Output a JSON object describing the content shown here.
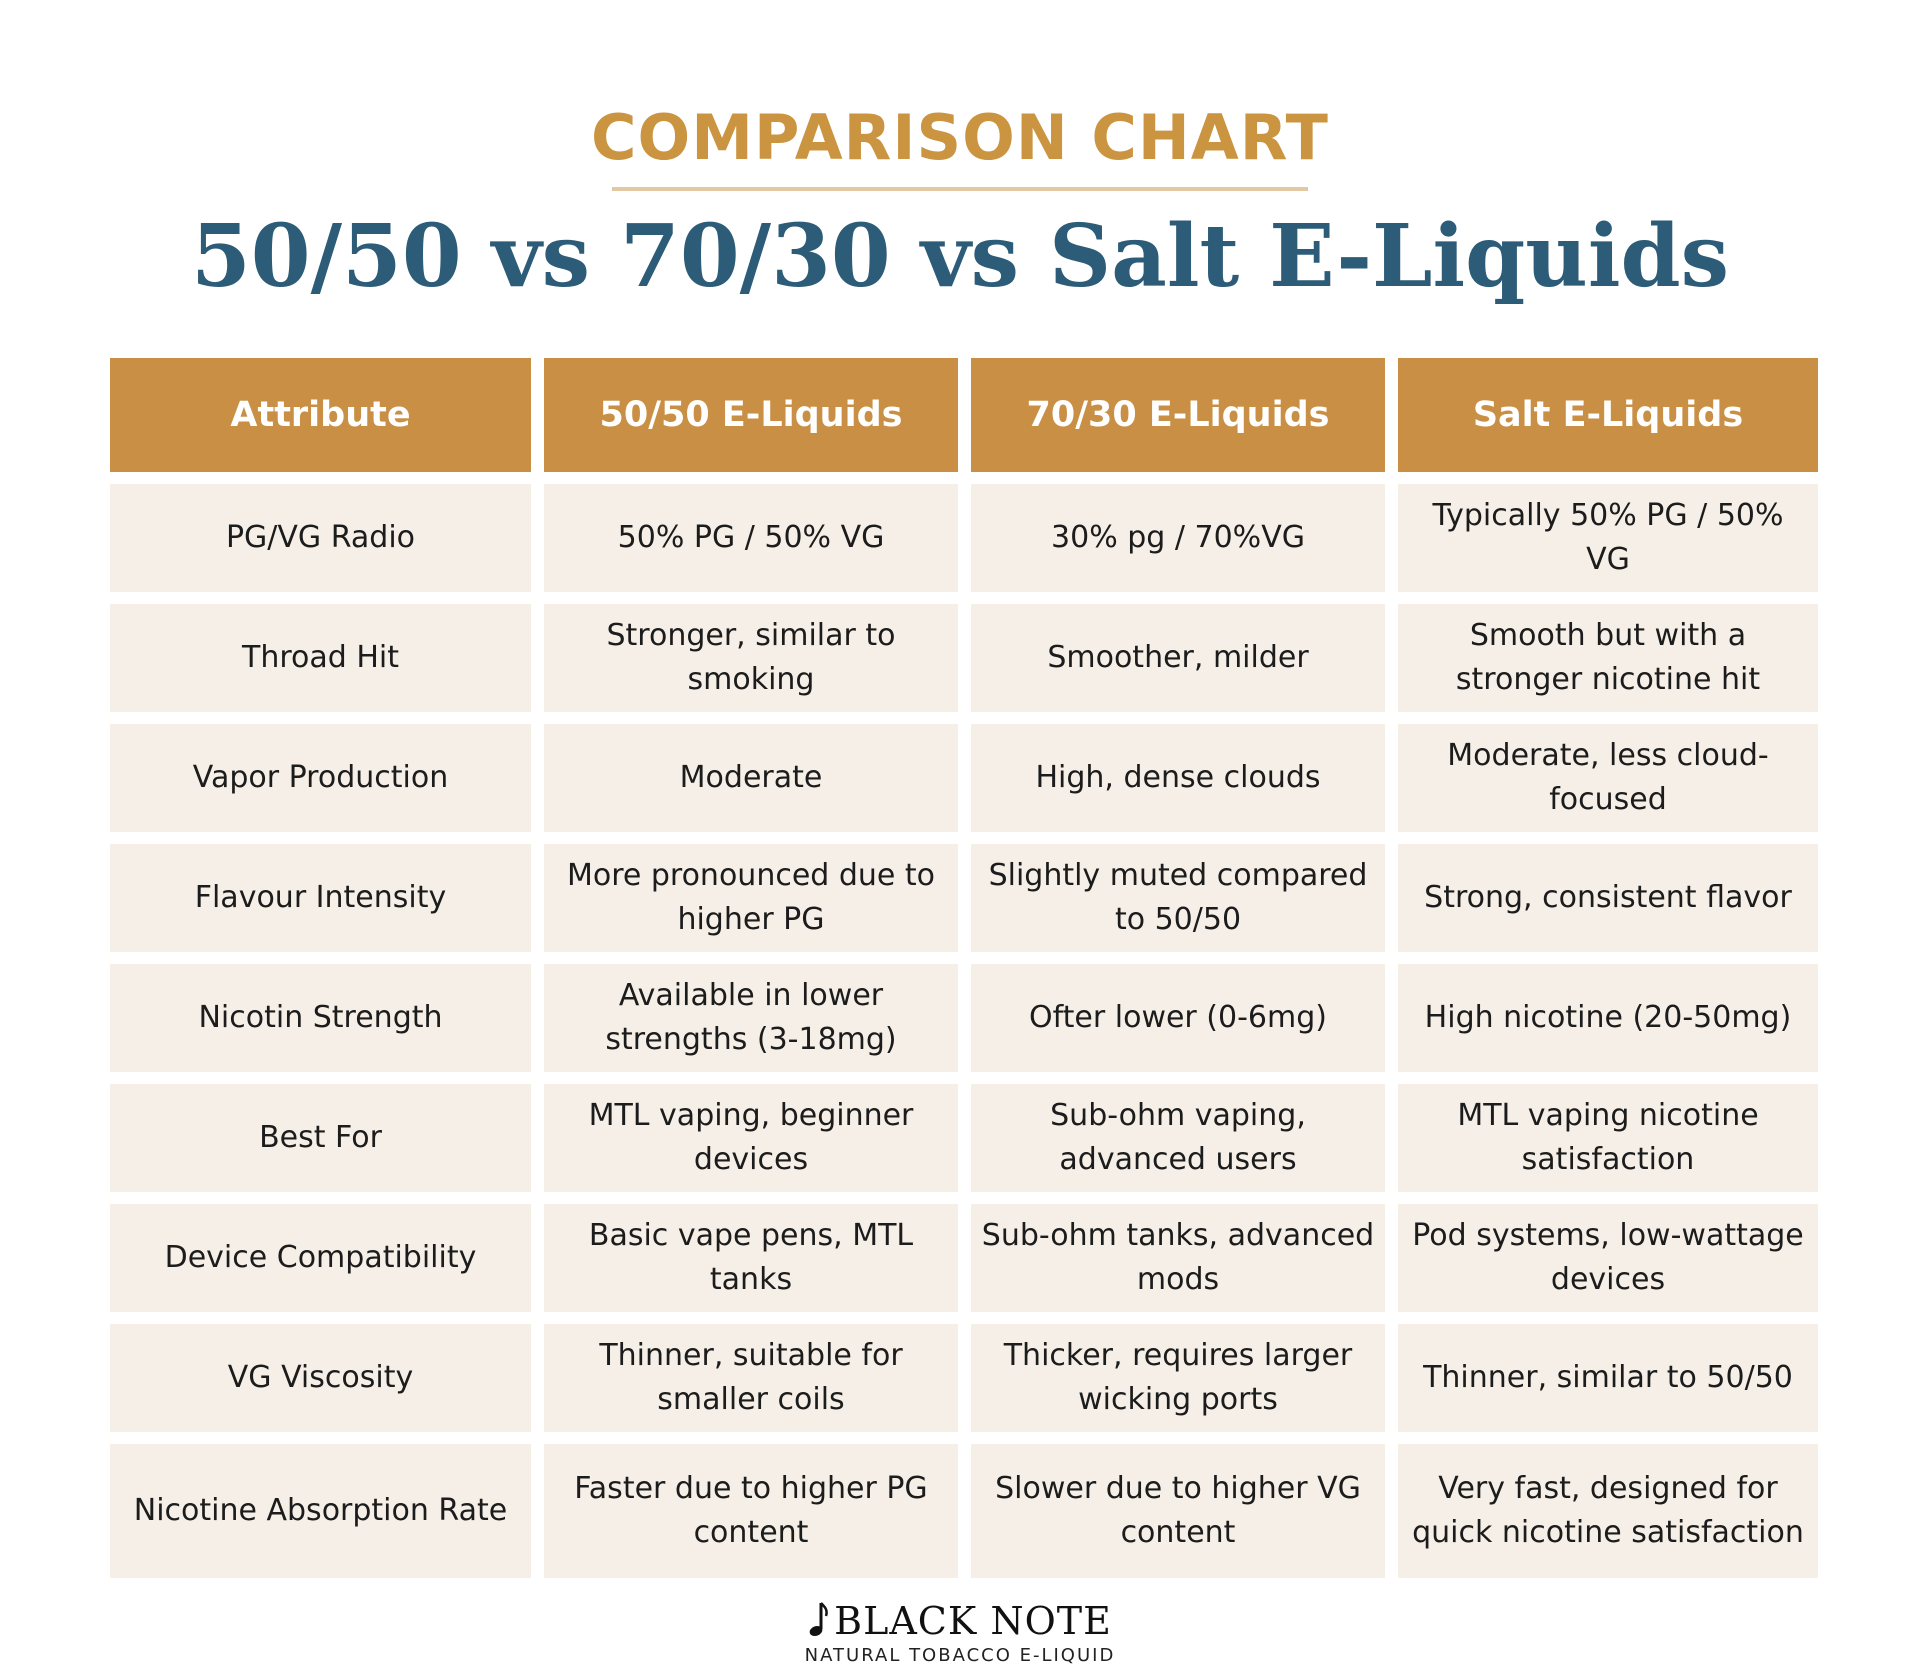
{
  "header": {
    "kicker": "COMPARISON CHART",
    "title": "50/50 vs 70/30 vs Salt E-Liquids"
  },
  "table": {
    "columns": [
      "Attribute",
      "50/50 E-Liquids",
      "70/30 E-Liquids",
      "Salt E-Liquids"
    ],
    "rows": [
      [
        "PG/VG Radio",
        "50% PG / 50% VG",
        "30% pg / 70%VG",
        "Typically 50% PG / 50% VG"
      ],
      [
        "Throad Hit",
        "Stronger, similar to smoking",
        "Smoother, milder",
        "Smooth but with a stronger nicotine hit"
      ],
      [
        "Vapor Production",
        "Moderate",
        "High, dense clouds",
        "Moderate, less cloud-focused"
      ],
      [
        "Flavour Intensity",
        "More pronounced due to higher PG",
        "Slightly muted compared to 50/50",
        "Strong, consistent flavor"
      ],
      [
        "Nicotin Strength",
        "Available in lower strengths (3-18mg)",
        "Ofter lower (0-6mg)",
        "High nicotine (20-50mg)"
      ],
      [
        "Best For",
        "MTL vaping, beginner devices",
        "Sub-ohm vaping, advanced users",
        "MTL vaping nicotine satisfaction"
      ],
      [
        "Device Compatibility",
        "Basic vape pens, MTL tanks",
        "Sub-ohm tanks, advanced mods",
        "Pod systems, low-wattage devices"
      ],
      [
        "VG Viscosity",
        "Thinner, suitable for smaller coils",
        "Thicker, requires larger wicking ports",
        "Thinner, similar to 50/50"
      ],
      [
        "Nicotine Absorption Rate",
        "Faster due to higher PG content",
        "Slower due to higher VG content",
        "Very fast, designed for quick nicotine satisfaction"
      ]
    ]
  },
  "brand": {
    "name": "BLACK NOTE",
    "tagline": "NATURAL TOBACCO E-LIQUID",
    "logo_icon": "music-note-icon"
  },
  "colors": {
    "accent": "#c98f44",
    "title": "#2d5c78",
    "cell_bg": "#f5efe7"
  }
}
